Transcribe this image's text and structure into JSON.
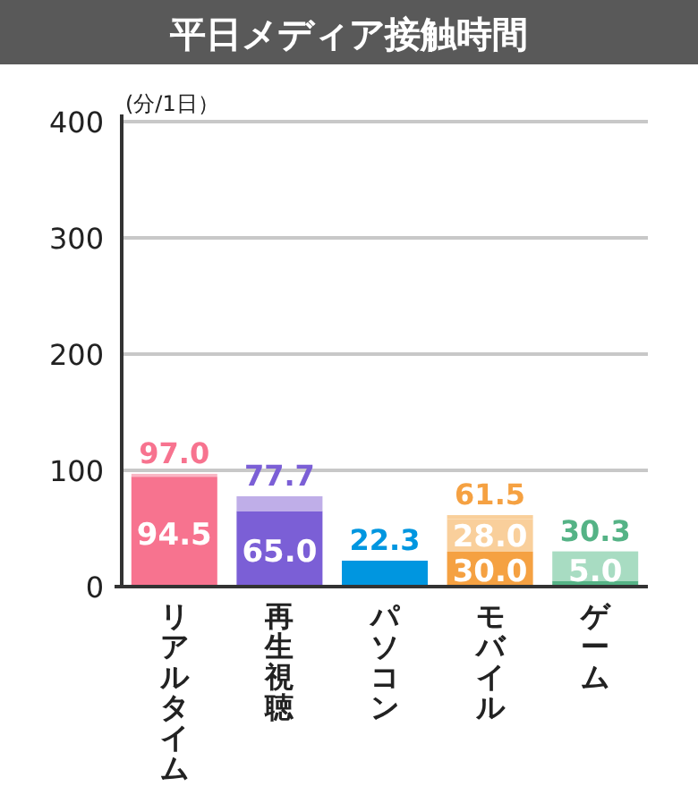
{
  "chart_data": {
    "type": "bar",
    "stacked": true,
    "title": "平日メディア接触時間",
    "ylabel": "(分/1日）",
    "categories": [
      "リアルタイム",
      "再生視聴",
      "パソコン",
      "モバイル",
      "ゲーム"
    ],
    "ylim": [
      0,
      400
    ],
    "yticks": [
      0,
      100,
      200,
      300,
      400
    ],
    "grid": "y",
    "series": [
      {
        "colors": [
          "#f7738f",
          "#7b5fd6",
          "#0096e0",
          "#f5a142",
          "#55b386"
        ],
        "values": [
          94.5,
          65.0,
          22.3,
          30.0,
          5.0
        ],
        "value_labels": [
          "94.5",
          "65.0",
          null,
          "30.0",
          "5.0"
        ]
      },
      {
        "colors": [
          "#f9b6c4",
          "#bfaee8",
          null,
          "#f9cf9b",
          "#a8dcc2"
        ],
        "values": [
          2.5,
          12.7,
          null,
          28.0,
          25.3
        ],
        "value_labels": [
          null,
          null,
          null,
          "28.0",
          null
        ]
      },
      {
        "color": "#f9cf9b",
        "values": [
          null,
          null,
          null,
          3.5,
          null
        ]
      }
    ],
    "totals": [
      "97.0",
      "77.7",
      "22.3",
      "61.5",
      "30.3"
    ]
  }
}
